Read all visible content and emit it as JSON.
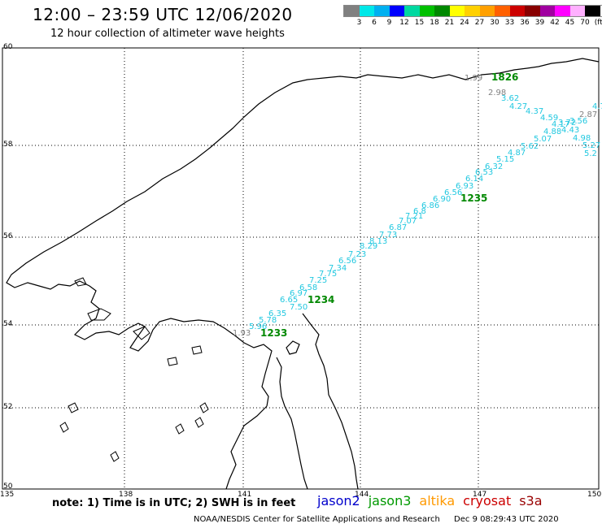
{
  "header": {
    "title": "12:00 – 23:59 UTC 12/06/2020",
    "subtitle": "12 hour collection of altimeter wave heights"
  },
  "scale": {
    "colors": [
      "#808080",
      "#00e8e8",
      "#00b0f0",
      "#0000ff",
      "#00d8a0",
      "#00c000",
      "#008800",
      "#ffff00",
      "#ffd000",
      "#ffa000",
      "#ff6000",
      "#cc0000",
      "#880000",
      "#a000a0",
      "#ff00ff",
      "#ffb0ff",
      "#000000"
    ],
    "labels": [
      "3",
      "6",
      "9",
      "12",
      "15",
      "18",
      "21",
      "24",
      "27",
      "30",
      "33",
      "36",
      "39",
      "42",
      "45",
      "70",
      "(ft)"
    ]
  },
  "axes": {
    "lat_labels": [
      "60",
      "58",
      "56",
      "54",
      "52",
      "50"
    ],
    "lon_labels": [
      "135",
      "138",
      "141",
      "144",
      "147",
      "150"
    ]
  },
  "track_labels": [
    "1826",
    "1235",
    "1234",
    "1233"
  ],
  "swh_values": [
    "1.99",
    "2.87",
    "4.7",
    "3.56",
    "4.98",
    "5.27",
    "5.2",
    "2.98",
    "3.62",
    "4.27",
    "4.37",
    "4.59",
    "4.17",
    "3.72",
    "4.43",
    "4.88",
    "5.07",
    "5.62",
    "4.87",
    "5.15",
    "6.32",
    "6.53",
    "6.14",
    "6.93",
    "6.56",
    "6.90",
    "6.86",
    "6.8",
    "7.21",
    "7.07",
    "6.87",
    "7.73",
    "8.13",
    "8.29",
    "7.23",
    "6.56",
    "7.34",
    "7.75",
    "7.25",
    "6.58",
    "6.97",
    "6.65",
    "7.50",
    "6.35",
    "5.78",
    "5.96",
    "1.93"
  ],
  "note": "note: 1) Time is in UTC; 2) SWH is in feet",
  "satellites": [
    {
      "name": "jason2",
      "color": "#0000cc"
    },
    {
      "name": "jason3",
      "color": "#009900"
    },
    {
      "name": "altika",
      "color": "#ff9900"
    },
    {
      "name": "cryosat",
      "color": "#cc0000"
    },
    {
      "name": "s3a",
      "color": "#990000"
    }
  ],
  "footer": {
    "agency": "NOAA/NESDIS Center for Satellite Applications and Research",
    "timestamp": "Dec  9 08:29:43 UTC 2020"
  }
}
